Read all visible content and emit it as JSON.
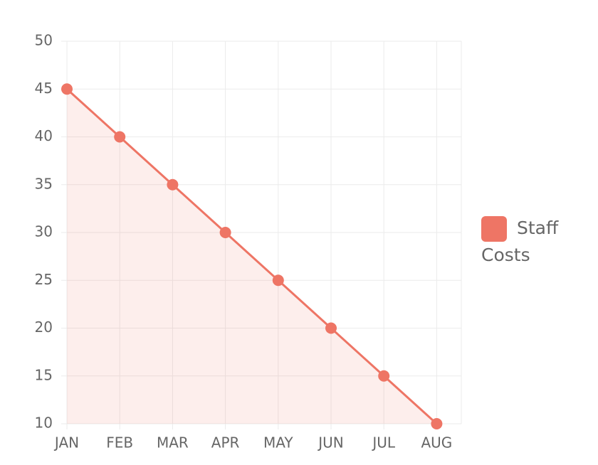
{
  "chart_data": {
    "type": "line",
    "categories": [
      "JAN",
      "FEB",
      "MAR",
      "APR",
      "MAY",
      "JUN",
      "JUL",
      "AUG"
    ],
    "series": [
      {
        "name": "Staff Costs",
        "color": "#ee7565",
        "values": [
          45,
          40,
          35,
          30,
          25,
          20,
          15,
          10
        ]
      }
    ],
    "ylim": [
      10,
      50
    ],
    "yticks": [
      10,
      15,
      20,
      25,
      30,
      35,
      40,
      45,
      50
    ],
    "grid": true,
    "fill": true,
    "legend": "right"
  }
}
